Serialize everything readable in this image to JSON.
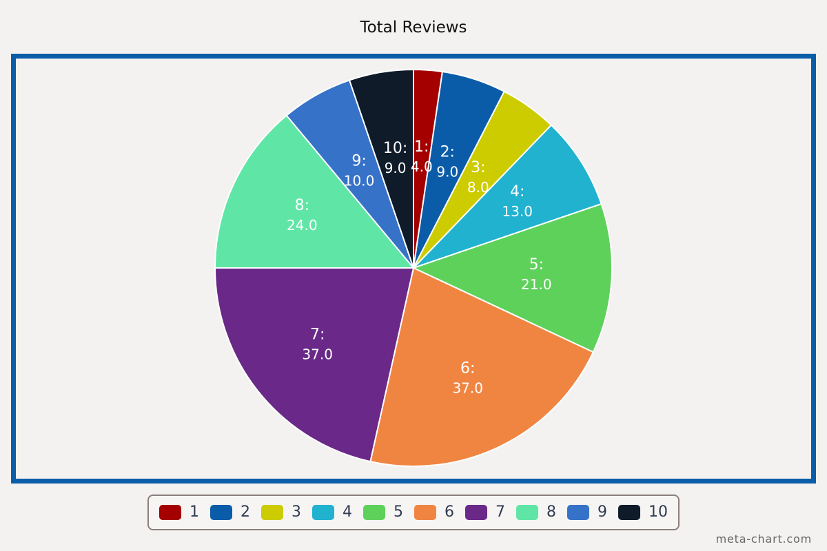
{
  "chart_data": {
    "type": "pie",
    "title": "Total Reviews",
    "categories": [
      "1",
      "2",
      "3",
      "4",
      "5",
      "6",
      "7",
      "8",
      "9",
      "10"
    ],
    "values": [
      4.0,
      9.0,
      8.0,
      13.0,
      21.0,
      37.0,
      37.0,
      24.0,
      10.0,
      9.0
    ],
    "slice_labels": [
      "1:",
      "2:",
      "3:",
      "4:",
      "5:",
      "6:",
      "7:",
      "8:",
      "9:",
      "10:"
    ],
    "value_labels": [
      "4.0",
      "9.0",
      "8.0",
      "13.0",
      "21.0",
      "37.0",
      "37.0",
      "24.0",
      "10.0",
      "9.0"
    ],
    "colors": [
      "#a50000",
      "#0b5ca8",
      "#cccc00",
      "#20b2cf",
      "#5ed15a",
      "#f08542",
      "#6a2988",
      "#5fe6a6",
      "#3672c8",
      "#101b29"
    ],
    "legend": {
      "placement": "bottom-center",
      "entries": [
        "1",
        "2",
        "3",
        "4",
        "5",
        "6",
        "7",
        "8",
        "9",
        "10"
      ]
    }
  },
  "footer": {
    "credit": "meta-chart.com"
  }
}
